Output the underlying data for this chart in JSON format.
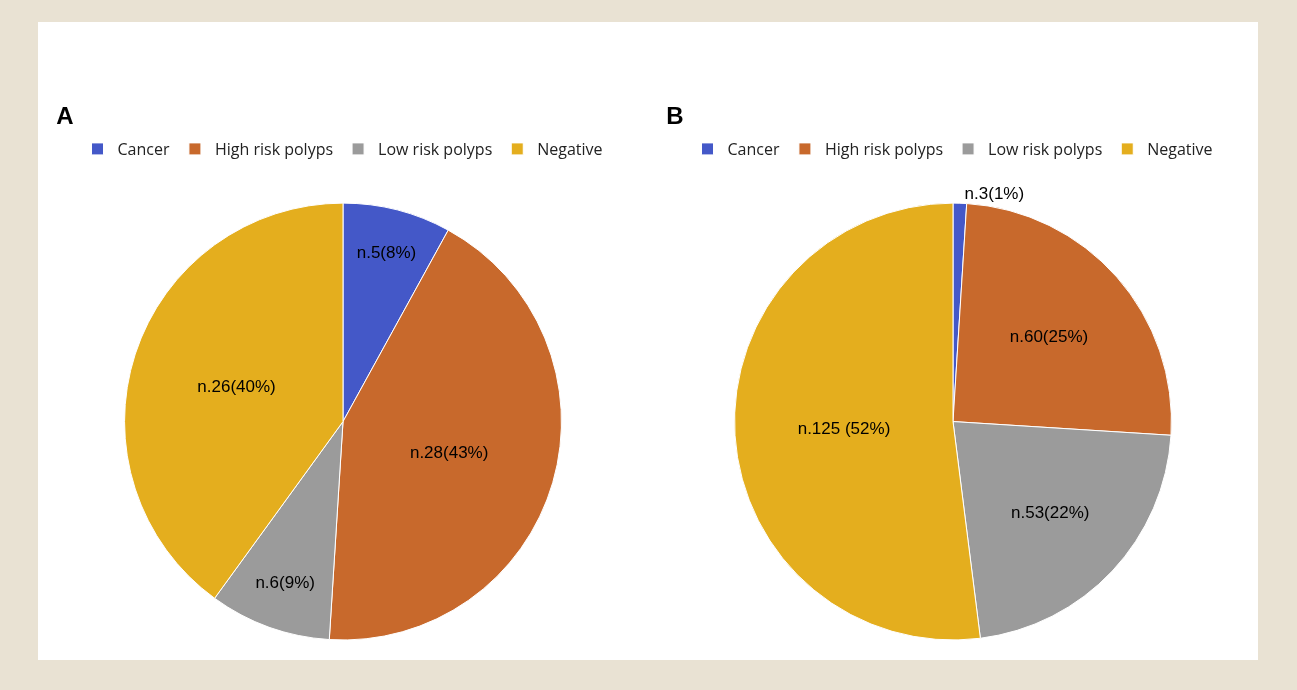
{
  "chart_data": [
    {
      "type": "pie",
      "title": "A",
      "categories": [
        "Cancer",
        "High risk polyps",
        "Low risk polyps",
        "Negative"
      ],
      "values": [
        8,
        43,
        9,
        40
      ],
      "value_labels": [
        "n.5(8%)",
        "n.28(43%)",
        "n.6(9%)",
        "n.26(40%)"
      ],
      "colors": [
        "#4458c8",
        "#c8692c",
        "#9b9b9b",
        "#e4ae1e"
      ],
      "legend": "top"
    },
    {
      "type": "pie",
      "title": "B",
      "categories": [
        "Cancer",
        "High risk polyps",
        "Low risk polyps",
        "Negative"
      ],
      "values": [
        1,
        25,
        22,
        52
      ],
      "value_labels": [
        "n.3(1%)",
        "n.60(25%)",
        "n.53(22%)",
        "n.125 (52%)"
      ],
      "colors": [
        "#4458c8",
        "#c8692c",
        "#9b9b9b",
        "#e4ae1e"
      ],
      "legend": "top"
    }
  ]
}
